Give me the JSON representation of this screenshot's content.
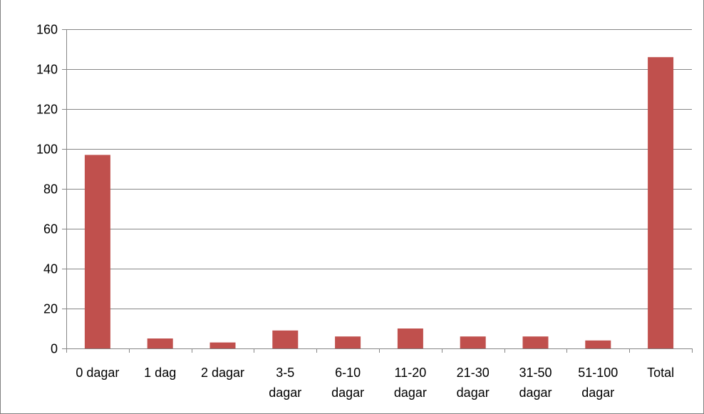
{
  "chart_data": {
    "type": "bar",
    "title": "",
    "xlabel": "",
    "ylabel": "",
    "categories": [
      [
        "0 dagar"
      ],
      [
        "1 dag"
      ],
      [
        "2 dagar"
      ],
      [
        "3-5",
        "dagar"
      ],
      [
        "6-10",
        "dagar"
      ],
      [
        "11-20",
        "dagar"
      ],
      [
        "21-30",
        "dagar"
      ],
      [
        "31-50",
        "dagar"
      ],
      [
        "51-100",
        "dagar"
      ],
      [
        "Total"
      ]
    ],
    "values": [
      97,
      5,
      3,
      9,
      6,
      10,
      6,
      6,
      4,
      146
    ],
    "ylim": [
      0,
      160
    ],
    "yticks": [
      0,
      20,
      40,
      60,
      80,
      100,
      120,
      140,
      160
    ],
    "grid": true,
    "legend": "none",
    "colors": {
      "bar": "#C0504D",
      "grid": "#868686",
      "axis": "#868686"
    }
  }
}
